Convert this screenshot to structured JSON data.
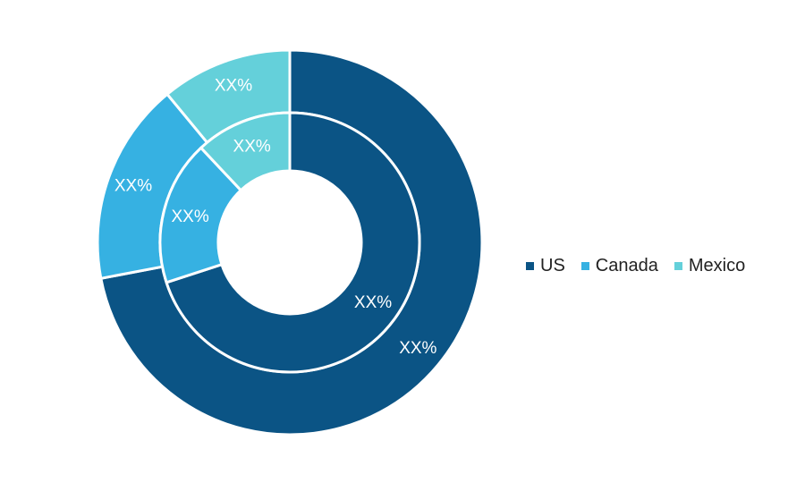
{
  "chart_data": {
    "type": "pie",
    "legend": {
      "placement": "right",
      "entries": [
        "US",
        "Canada",
        "Mexico"
      ]
    },
    "rings": [
      {
        "name": "",
        "position": "outer",
        "slices": [
          {
            "label": "US",
            "value": 72,
            "display": "XX%"
          },
          {
            "label": "Canada",
            "value": 17,
            "display": "XX%"
          },
          {
            "label": "Mexico",
            "value": 11,
            "display": "XX%"
          }
        ]
      },
      {
        "name": "",
        "position": "inner",
        "slices": [
          {
            "label": "US",
            "value": 70,
            "display": "XX%"
          },
          {
            "label": "Canada",
            "value": 18,
            "display": "XX%"
          },
          {
            "label": "Mexico",
            "value": 12,
            "display": "XX%"
          }
        ]
      }
    ],
    "colors": {
      "US": "#0b5485",
      "Canada": "#36b1e2",
      "Mexico": "#64d0da"
    }
  }
}
